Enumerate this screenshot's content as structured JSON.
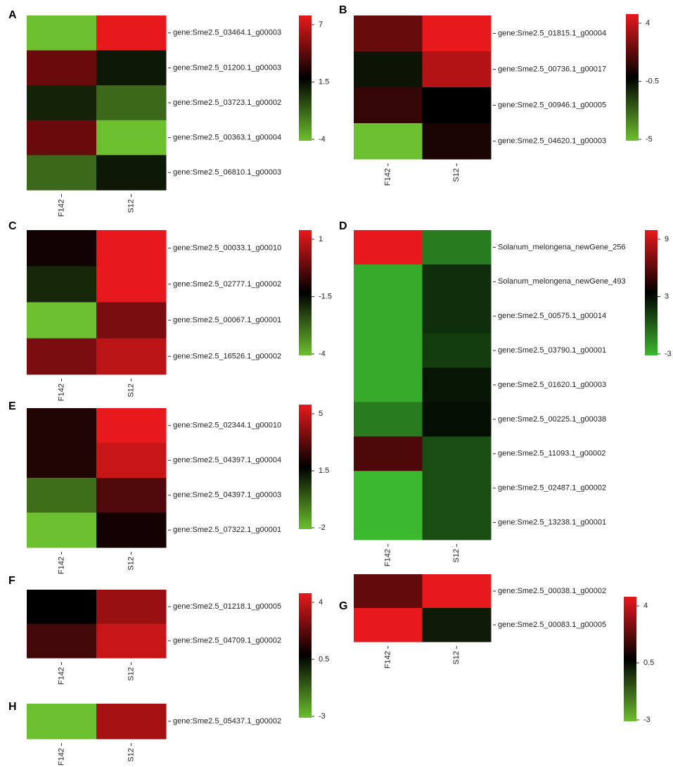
{
  "chart_data": [
    {
      "type": "heatmap",
      "panel": "A",
      "categories": [
        "gene:Sme2.5_03464.1_g00003",
        "gene:Sme2.5_01200.1_g00003",
        "gene:Sme2.5_03723.1_g00002",
        "gene:Sme2.5_00363.1_g00004",
        "gene:Sme2.5_06810.1_g00003"
      ],
      "columns": [
        "F142",
        "S12"
      ],
      "values": [
        [
          -4,
          7
        ],
        [
          4,
          0.8
        ],
        [
          0.5,
          -1.5
        ],
        [
          4,
          -4
        ],
        [
          -1.5,
          0.8
        ]
      ],
      "zlim": [
        -4,
        7
      ],
      "zticks": [
        -4,
        1.5,
        7
      ],
      "colors": [
        "#6cbf2e",
        "#000000",
        "#e8191c"
      ]
    },
    {
      "type": "heatmap",
      "panel": "B",
      "categories": [
        "gene:Sme2.5_01815.1_g00004",
        "gene:Sme2.5_00736.1_g00017",
        "gene:Sme2.5_00946.1_g00005",
        "gene:Sme2.5_04620.1_g00003"
      ],
      "columns": [
        "F142",
        "S12"
      ],
      "values": [
        [
          1.5,
          4
        ],
        [
          -1,
          3
        ],
        [
          0.5,
          -0.5
        ],
        [
          -5,
          0
        ]
      ],
      "zlim": [
        -5,
        4
      ],
      "zticks": [
        -5,
        -0.5,
        4
      ],
      "colors": [
        "#6cbf2e",
        "#000000",
        "#e8191c"
      ]
    },
    {
      "type": "heatmap",
      "panel": "C",
      "categories": [
        "gene:Sme2.5_00033.1_g00010",
        "gene:Sme2.5_02777.1_g00002",
        "gene:Sme2.5_00067.1_g00001",
        "gene:Sme2.5_16526.1_g00002"
      ],
      "columns": [
        "F142",
        "S12"
      ],
      "values": [
        [
          -1.3,
          1
        ],
        [
          -2,
          1
        ],
        [
          -4,
          -0.2
        ],
        [
          -0.2,
          0.5
        ]
      ],
      "zlim": [
        -4,
        1
      ],
      "zticks": [
        -4,
        -1.5,
        1
      ],
      "colors": [
        "#6cbf2e",
        "#000000",
        "#e8191c"
      ]
    },
    {
      "type": "heatmap",
      "panel": "D",
      "categories": [
        "Solanum_melongena_newGene_256",
        "Solanum_melongena_newGene_493",
        "gene:Sme2.5_00575.1_g00014",
        "gene:Sme2.5_03790.1_g00001",
        "gene:Sme2.5_01620.1_g00003",
        "gene:Sme2.5_00225.1_g00038",
        "gene:Sme2.5_11093.1_g00002",
        "gene:Sme2.5_02487.1_g00002",
        "gene:Sme2.5_13238.1_g00001"
      ],
      "columns": [
        "F142",
        "S12"
      ],
      "values": [
        [
          9,
          -1
        ],
        [
          -2.5,
          1.5
        ],
        [
          -2.5,
          1.5
        ],
        [
          -2.5,
          1
        ],
        [
          -2.5,
          2.3
        ],
        [
          -1,
          2.5
        ],
        [
          5,
          0.5
        ],
        [
          -3,
          0.5
        ],
        [
          -3,
          0.5
        ]
      ],
      "zlim": [
        -3,
        9
      ],
      "zticks": [
        -3,
        3,
        9
      ],
      "colors": [
        "#3cb82e",
        "#000000",
        "#e8191c"
      ]
    },
    {
      "type": "heatmap",
      "panel": "E",
      "categories": [
        "gene:Sme2.5_02344.1_g00010",
        "gene:Sme2.5_04397.1_g00004",
        "gene:Sme2.5_04397.1_g00003",
        "gene:Sme2.5_07322.1_g00001"
      ],
      "columns": [
        "F142",
        "S12"
      ],
      "values": [
        [
          2,
          5
        ],
        [
          2,
          4.5
        ],
        [
          -0.5,
          2.7
        ],
        [
          -2,
          1.8
        ]
      ],
      "zlim": [
        -2,
        5
      ],
      "zticks": [
        -2,
        1.5,
        5
      ],
      "colors": [
        "#6cbf2e",
        "#000000",
        "#e8191c"
      ]
    },
    {
      "type": "heatmap",
      "panel": "F",
      "categories": [
        "gene:Sme2.5_01218.1_g00005",
        "gene:Sme2.5_04709.1_g00002"
      ],
      "columns": [
        "F142",
        "S12"
      ],
      "values": [
        [
          0.5,
          2.8
        ],
        [
          1.5,
          3.5
        ]
      ],
      "zlim": [
        -3,
        4
      ],
      "zticks": [
        -3,
        0.5,
        4
      ],
      "colors": [
        "#6cbf2e",
        "#000000",
        "#e8191c"
      ]
    },
    {
      "type": "heatmap",
      "panel": "H",
      "categories": [
        "gene:Sme2.5_05437.1_g00002"
      ],
      "columns": [
        "F142",
        "S12"
      ],
      "values": [
        [
          -3,
          3
        ]
      ]
    },
    {
      "type": "heatmap",
      "panel": "G",
      "categories": [
        "gene:Sme2.5_00038.1_g00002",
        "gene:Sme2.5_00083.1_g00005"
      ],
      "columns": [
        "F142",
        "S12"
      ],
      "values": [
        [
          2,
          4
        ],
        [
          4,
          0
        ]
      ],
      "zlim": [
        -3,
        4
      ],
      "zticks": [
        -3,
        0.5,
        4
      ],
      "colors": [
        "#6cbf2e",
        "#000000",
        "#e8191c"
      ]
    }
  ]
}
